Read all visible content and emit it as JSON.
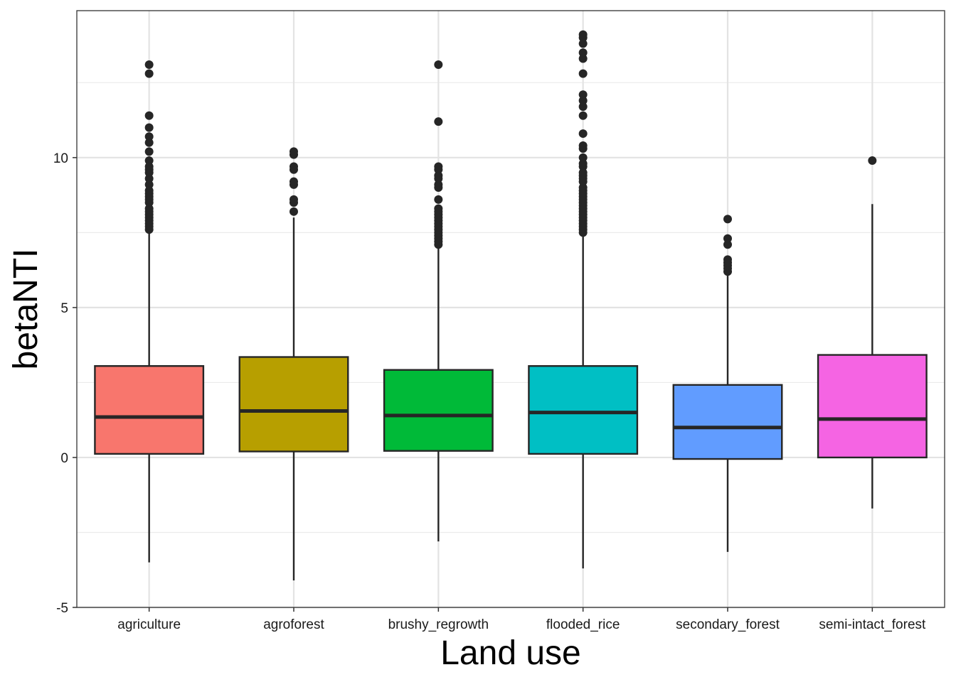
{
  "chart_data": {
    "type": "boxplot",
    "title": "",
    "xlabel": "Land use",
    "ylabel": "betaNTI",
    "ylim": [
      -5,
      14.9
    ],
    "yticks": [
      -5,
      0,
      5,
      10
    ],
    "y_minor_ticks": [
      -2.5,
      2.5,
      7.5,
      12.5
    ],
    "grid": true,
    "legend": "none",
    "categories": [
      "agriculture",
      "agroforest",
      "brushy_regrowth",
      "flooded_rice",
      "secondary_forest",
      "semi-intact_forest"
    ],
    "boxes": [
      {
        "category": "agriculture",
        "color": "#F8766D",
        "q1": 0.12,
        "median": 1.35,
        "q3": 3.05,
        "whisker_low": -3.5,
        "whisker_high": 7.5,
        "outliers": [
          7.6,
          7.7,
          7.8,
          7.9,
          8.0,
          8.1,
          8.2,
          8.3,
          8.5,
          8.6,
          8.7,
          8.8,
          8.9,
          9.1,
          9.3,
          9.5,
          9.6,
          9.7,
          9.9,
          10.2,
          10.5,
          10.7,
          11.0,
          11.4,
          12.8,
          13.1
        ]
      },
      {
        "category": "agroforest",
        "color": "#B79F00",
        "q1": 0.2,
        "median": 1.55,
        "q3": 3.35,
        "whisker_low": -4.1,
        "whisker_high": 8.0,
        "outliers": [
          8.2,
          8.5,
          8.6,
          9.1,
          9.2,
          9.6,
          9.7,
          10.1,
          10.2
        ]
      },
      {
        "category": "brushy_regrowth",
        "color": "#00BA38",
        "q1": 0.22,
        "median": 1.4,
        "q3": 2.92,
        "whisker_low": -2.8,
        "whisker_high": 7.0,
        "outliers": [
          7.1,
          7.2,
          7.3,
          7.4,
          7.5,
          7.6,
          7.7,
          7.8,
          7.9,
          8.0,
          8.1,
          8.2,
          8.3,
          8.6,
          9.0,
          9.1,
          9.3,
          9.4,
          9.6,
          9.7,
          11.2,
          13.1
        ]
      },
      {
        "category": "flooded_rice",
        "color": "#00BFC4",
        "q1": 0.12,
        "median": 1.5,
        "q3": 3.05,
        "whisker_low": -3.7,
        "whisker_high": 7.45,
        "outliers": [
          7.5,
          7.6,
          7.7,
          7.8,
          7.9,
          8.0,
          8.1,
          8.2,
          8.3,
          8.4,
          8.5,
          8.6,
          8.7,
          8.8,
          8.9,
          9.0,
          9.2,
          9.3,
          9.4,
          9.5,
          9.7,
          9.8,
          10.0,
          10.3,
          10.4,
          10.8,
          11.4,
          11.7,
          11.9,
          12.1,
          12.8,
          13.3,
          13.5,
          13.8,
          14.0,
          14.1
        ]
      },
      {
        "category": "secondary_forest",
        "color": "#619CFF",
        "q1": -0.05,
        "median": 1.0,
        "q3": 2.42,
        "whisker_low": -3.15,
        "whisker_high": 6.15,
        "outliers": [
          6.2,
          6.3,
          6.4,
          6.5,
          6.6,
          7.1,
          7.3,
          7.95
        ]
      },
      {
        "category": "semi-intact_forest",
        "color": "#F564E3",
        "q1": 0.0,
        "median": 1.28,
        "q3": 3.42,
        "whisker_low": -1.7,
        "whisker_high": 8.45,
        "outliers": [
          9.9
        ]
      }
    ]
  }
}
